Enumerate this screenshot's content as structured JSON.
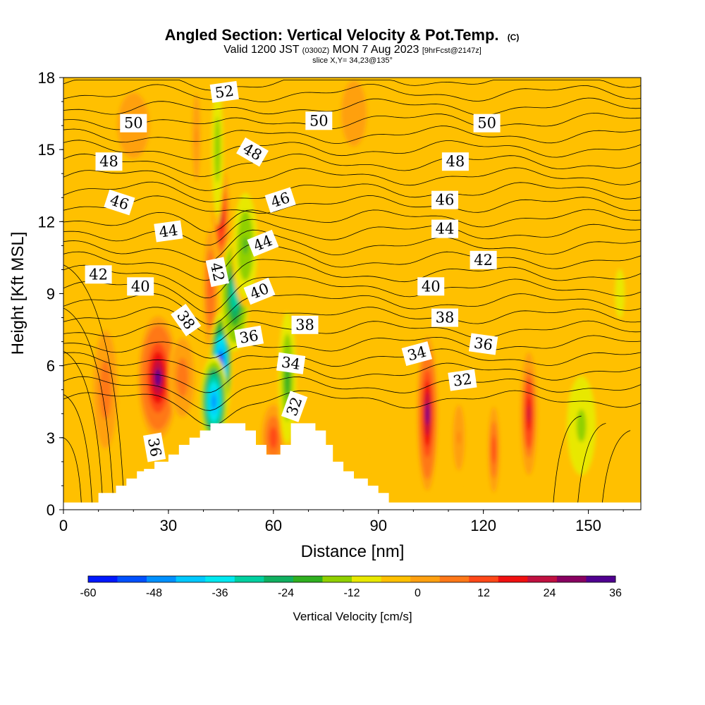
{
  "header": {
    "title_main": "Angled Section: Vertical Velocity & Pot.Temp.",
    "title_main_tag": "(C)",
    "valid_prefix": "Valid 1200 JST",
    "valid_utc": "(0300Z)",
    "valid_date": "MON 7 Aug 2023",
    "forecast_tag": "[9hrFcst@2147z]",
    "slice": "slice X,Y= 34,23@135°"
  },
  "chart_data": {
    "type": "heatmap",
    "xlabel": "Distance [nm]",
    "ylabel": "Height [Kft MSL]",
    "xlim": [
      0,
      165
    ],
    "ylim": [
      0,
      18
    ],
    "x_ticks": [
      "0",
      "30",
      "60",
      "90",
      "120",
      "150"
    ],
    "x_tick_values": [
      0,
      30,
      60,
      90,
      120,
      150
    ],
    "y_ticks": [
      "0",
      "3",
      "6",
      "9",
      "12",
      "15",
      "18"
    ],
    "y_tick_values": [
      0,
      3,
      6,
      9,
      12,
      15,
      18
    ],
    "colorbar": {
      "label": "Vertical Velocity [cm/s]",
      "ticks": [
        "-60",
        "-48",
        "-36",
        "-24",
        "-12",
        "0",
        "12",
        "24",
        "36"
      ],
      "tick_values": [
        -60,
        -48,
        -36,
        -24,
        -12,
        0,
        12,
        24,
        36
      ],
      "levels": [
        -60,
        -54,
        -48,
        -42,
        -36,
        -30,
        -24,
        -18,
        -12,
        -6,
        0,
        6,
        12,
        18,
        24,
        30,
        36
      ],
      "colors": [
        "#0018ff",
        "#0050ff",
        "#0090ff",
        "#00c8ff",
        "#00e8f0",
        "#00d0a0",
        "#10b060",
        "#30b020",
        "#90d000",
        "#e8e800",
        "#ffc000",
        "#ffa010",
        "#ff7818",
        "#ff4818",
        "#f01010",
        "#c01040",
        "#880060",
        "#500090"
      ]
    },
    "background_value": 3,
    "velocity_cells": [
      {
        "x": 27,
        "y": 5.5,
        "sx": 3.5,
        "sy": 1.6,
        "v": 36
      },
      {
        "x": 12,
        "y": 5,
        "sx": 2.5,
        "sy": 1.8,
        "v": 16
      },
      {
        "x": 34,
        "y": 5.5,
        "sx": 2.5,
        "sy": 1.2,
        "v": 16
      },
      {
        "x": 45,
        "y": 12.2,
        "sx": 1.6,
        "sy": 1.3,
        "v": 30
      },
      {
        "x": 42,
        "y": 9.2,
        "sx": 1.5,
        "sy": 1.8,
        "v": 20
      },
      {
        "x": 45,
        "y": 6,
        "sx": 2,
        "sy": 1.4,
        "v": -58
      },
      {
        "x": 43,
        "y": 4.5,
        "sx": 2.5,
        "sy": 1.2,
        "v": -48
      },
      {
        "x": 49,
        "y": 9,
        "sx": 2.5,
        "sy": 1.5,
        "v": -30
      },
      {
        "x": 52,
        "y": 11,
        "sx": 2.5,
        "sy": 1.6,
        "v": -14
      },
      {
        "x": 44,
        "y": 15,
        "sx": 1.2,
        "sy": 2,
        "v": -12
      },
      {
        "x": 38,
        "y": 15.5,
        "sx": 1,
        "sy": 1.6,
        "v": 12
      },
      {
        "x": 60,
        "y": 3,
        "sx": 2.5,
        "sy": 1,
        "v": 22
      },
      {
        "x": 64,
        "y": 5.5,
        "sx": 1.8,
        "sy": 2,
        "v": -16
      },
      {
        "x": 104,
        "y": 4,
        "sx": 1.8,
        "sy": 2,
        "v": 36
      },
      {
        "x": 113,
        "y": 3,
        "sx": 1.5,
        "sy": 1.2,
        "v": 12
      },
      {
        "x": 123,
        "y": 2.5,
        "sx": 1.2,
        "sy": 1.3,
        "v": 22
      },
      {
        "x": 133,
        "y": 4,
        "sx": 1.5,
        "sy": 1.6,
        "v": 30
      },
      {
        "x": 148,
        "y": 3.5,
        "sx": 3,
        "sy": 1.5,
        "v": -9
      },
      {
        "x": 159,
        "y": 9,
        "sx": 2,
        "sy": 1.5,
        "v": -2
      },
      {
        "x": 83,
        "y": 16.5,
        "sx": 4,
        "sy": 1.5,
        "v": 9
      },
      {
        "x": 20,
        "y": 16,
        "sx": 5,
        "sy": 1.5,
        "v": 9
      },
      {
        "x": 90,
        "y": 4,
        "sx": 3,
        "sy": 1.5,
        "v": 1
      }
    ],
    "terrain": [
      [
        0,
        0.3
      ],
      [
        10,
        0.3
      ],
      [
        10,
        0.7
      ],
      [
        15,
        0.7
      ],
      [
        15,
        1.0
      ],
      [
        18,
        1.0
      ],
      [
        18,
        1.3
      ],
      [
        21,
        1.3
      ],
      [
        21,
        1.6
      ],
      [
        23,
        1.6
      ],
      [
        23,
        1.7
      ],
      [
        26,
        1.7
      ],
      [
        26,
        2.0
      ],
      [
        30,
        2.0
      ],
      [
        30,
        2.3
      ],
      [
        33,
        2.3
      ],
      [
        33,
        2.7
      ],
      [
        36,
        2.7
      ],
      [
        36,
        3.0
      ],
      [
        39,
        3.0
      ],
      [
        39,
        3.3
      ],
      [
        42,
        3.3
      ],
      [
        42,
        3.6
      ],
      [
        52,
        3.6
      ],
      [
        52,
        3.3
      ],
      [
        55,
        3.3
      ],
      [
        55,
        2.7
      ],
      [
        58,
        2.7
      ],
      [
        58,
        2.3
      ],
      [
        62,
        2.3
      ],
      [
        62,
        2.7
      ],
      [
        65,
        2.7
      ],
      [
        65,
        3.6
      ],
      [
        72,
        3.6
      ],
      [
        72,
        3.3
      ],
      [
        75,
        3.3
      ],
      [
        75,
        2.7
      ],
      [
        77,
        2.7
      ],
      [
        77,
        2.0
      ],
      [
        80,
        2.0
      ],
      [
        80,
        1.6
      ],
      [
        83,
        1.6
      ],
      [
        83,
        1.3
      ],
      [
        87,
        1.3
      ],
      [
        87,
        1.0
      ],
      [
        90,
        1.0
      ],
      [
        90,
        0.7
      ],
      [
        93,
        0.7
      ],
      [
        93,
        0.3
      ],
      [
        165,
        0.3
      ]
    ],
    "contour_labels": [
      {
        "text": "52",
        "x": 46,
        "y": 17.4,
        "angle": -8
      },
      {
        "text": "50",
        "x": 20,
        "y": 16.1,
        "angle": 0
      },
      {
        "text": "50",
        "x": 73,
        "y": 16.2,
        "angle": 0
      },
      {
        "text": "50",
        "x": 121,
        "y": 16.1,
        "angle": 0
      },
      {
        "text": "48",
        "x": 13,
        "y": 14.5,
        "angle": 0
      },
      {
        "text": "48",
        "x": 54,
        "y": 14.9,
        "angle": 30
      },
      {
        "text": "48",
        "x": 112,
        "y": 14.5,
        "angle": 0
      },
      {
        "text": "46",
        "x": 16,
        "y": 12.8,
        "angle": 18
      },
      {
        "text": "46",
        "x": 62,
        "y": 12.9,
        "angle": -18
      },
      {
        "text": "46",
        "x": 109,
        "y": 12.9,
        "angle": 0
      },
      {
        "text": "44",
        "x": 30,
        "y": 11.6,
        "angle": -8
      },
      {
        "text": "44",
        "x": 57,
        "y": 11.1,
        "angle": -22
      },
      {
        "text": "44",
        "x": 109,
        "y": 11.7,
        "angle": 0
      },
      {
        "text": "42",
        "x": 10,
        "y": 9.8,
        "angle": 0
      },
      {
        "text": "42",
        "x": 44,
        "y": 9.9,
        "angle": 78
      },
      {
        "text": "42",
        "x": 120,
        "y": 10.4,
        "angle": 0
      },
      {
        "text": "40",
        "x": 22,
        "y": 9.3,
        "angle": 0
      },
      {
        "text": "40",
        "x": 56,
        "y": 9.1,
        "angle": -22
      },
      {
        "text": "40",
        "x": 105,
        "y": 9.3,
        "angle": 0
      },
      {
        "text": "38",
        "x": 35,
        "y": 7.9,
        "angle": 55
      },
      {
        "text": "38",
        "x": 69,
        "y": 7.7,
        "angle": 0
      },
      {
        "text": "38",
        "x": 109,
        "y": 8.0,
        "angle": 0
      },
      {
        "text": "36",
        "x": 53,
        "y": 7.2,
        "angle": -10
      },
      {
        "text": "36",
        "x": 120,
        "y": 6.9,
        "angle": 8
      },
      {
        "text": "36",
        "x": 26,
        "y": 2.6,
        "angle": 80
      },
      {
        "text": "34",
        "x": 65,
        "y": 6.1,
        "angle": 8
      },
      {
        "text": "34",
        "x": 101,
        "y": 6.5,
        "angle": -15
      },
      {
        "text": "32",
        "x": 66,
        "y": 4.3,
        "angle": -70
      },
      {
        "text": "32",
        "x": 114,
        "y": 5.4,
        "angle": -8
      }
    ]
  }
}
